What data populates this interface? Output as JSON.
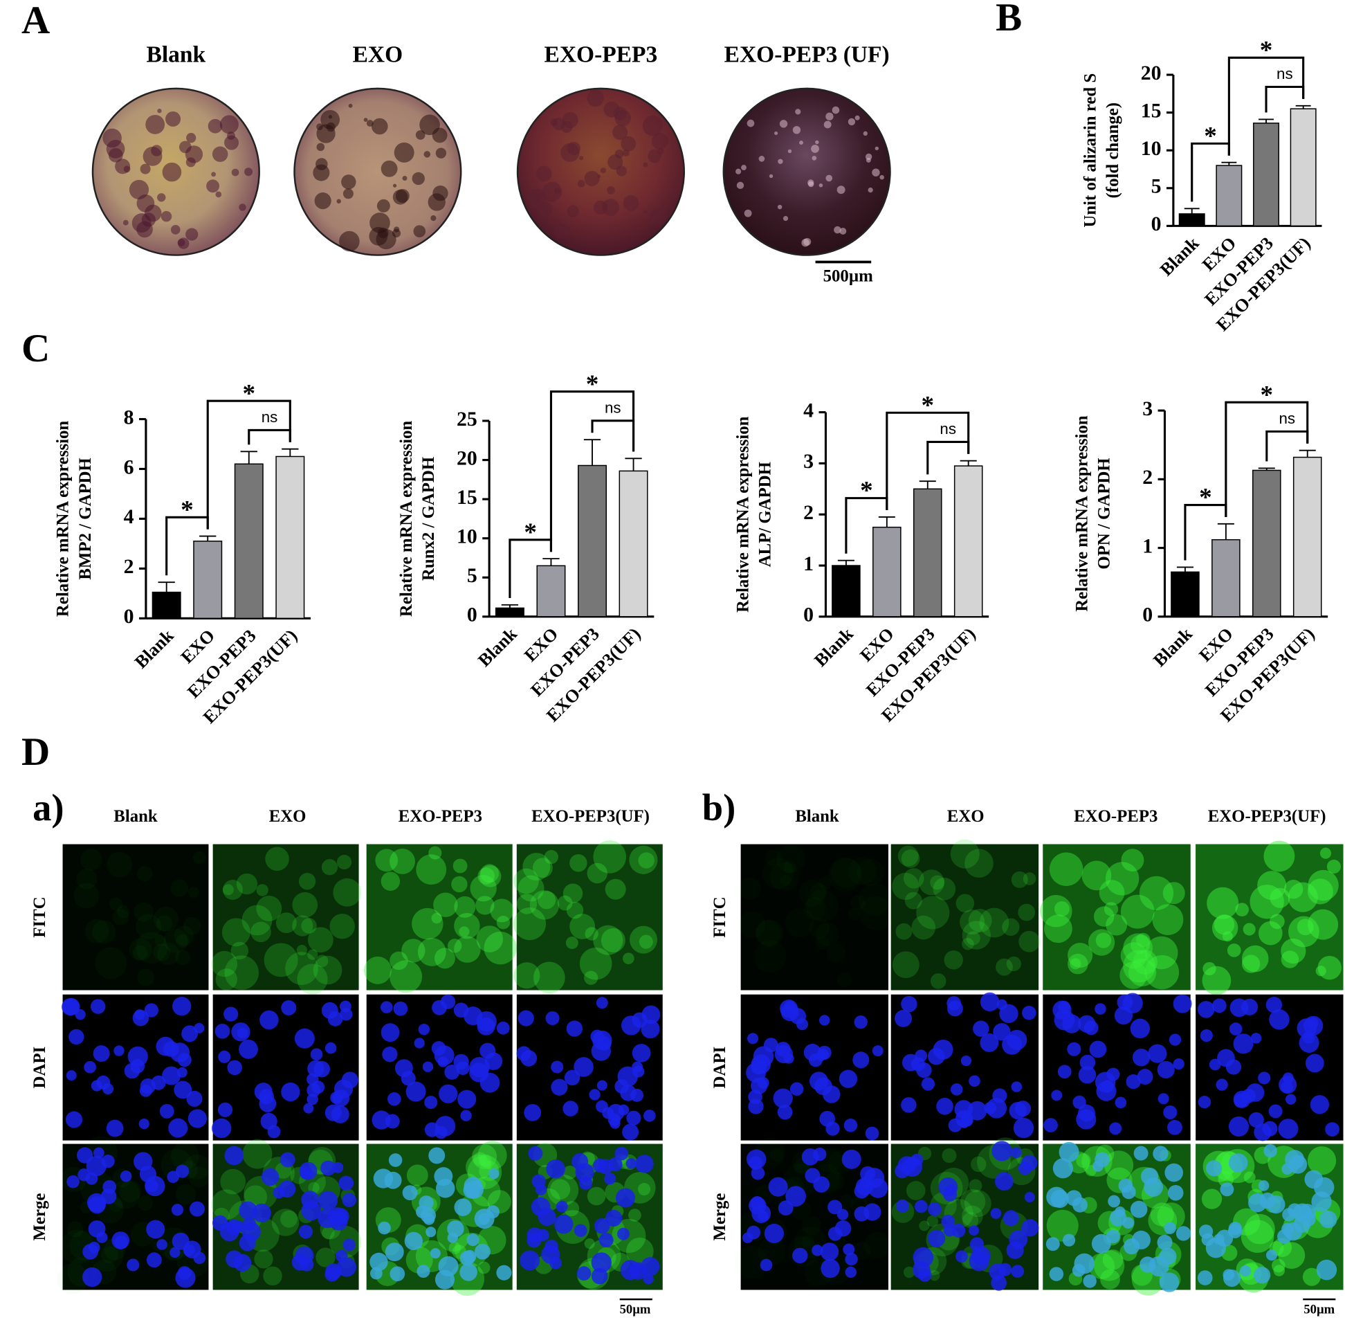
{
  "figure": {
    "panel_labels": [
      "A",
      "B",
      "C",
      "D"
    ],
    "panel_a": {
      "groups": [
        "Blank",
        "EXO",
        "EXO-PEP3",
        "EXO-PEP3 (UF)"
      ],
      "scale_bar": "500µm"
    },
    "panel_d": {
      "sub_labels": [
        "a)",
        "b)"
      ],
      "groups": [
        "Blank",
        "EXO",
        "EXO-PEP3",
        "EXO-PEP3(UF)"
      ],
      "channels": [
        "FITC",
        "DAPI",
        "Merge"
      ],
      "scale_bar": "50µm"
    }
  },
  "chart_data": [
    {
      "type": "bar",
      "ylabel": [
        "Unit of alizarin red S",
        "(fold change)"
      ],
      "categories": [
        "Blank",
        "EXO",
        "EXO-PEP3",
        "EXO-PEP3(UF)"
      ],
      "values": [
        1.6,
        8.0,
        13.6,
        15.5
      ],
      "errors": [
        0.7,
        0.4,
        0.5,
        0.4
      ],
      "colors": [
        "#000000",
        "#9a9aa2",
        "#777777",
        "#d4d4d4"
      ],
      "ylim": [
        0,
        20
      ],
      "yticks": [
        0,
        5,
        10,
        15,
        20
      ],
      "annotations": [
        {
          "text": "*",
          "between": [
            0,
            1
          ]
        },
        {
          "text": "ns",
          "between": [
            2,
            3
          ]
        },
        {
          "text": "*",
          "between": [
            1,
            3
          ]
        }
      ]
    },
    {
      "type": "bar",
      "ylabel": [
        "Relative mRNA expression",
        "BMP2 / GAPDH"
      ],
      "categories": [
        "Blank",
        "EXO",
        "EXO-PEP3",
        "EXO-PEP3(UF)"
      ],
      "values": [
        1.05,
        3.1,
        6.2,
        6.5
      ],
      "errors": [
        0.4,
        0.2,
        0.5,
        0.3
      ],
      "colors": [
        "#000000",
        "#9a9aa2",
        "#777777",
        "#d4d4d4"
      ],
      "ylim": [
        0,
        8
      ],
      "yticks": [
        0,
        2,
        4,
        6,
        8
      ],
      "annotations": [
        {
          "text": "*",
          "between": [
            0,
            1
          ]
        },
        {
          "text": "ns",
          "between": [
            2,
            3
          ]
        },
        {
          "text": "*",
          "between": [
            1,
            3
          ]
        }
      ]
    },
    {
      "type": "bar",
      "ylabel": [
        "Relative mRNA expression",
        "Runx2 / GAPDH"
      ],
      "categories": [
        "Blank",
        "EXO",
        "EXO-PEP3",
        "EXO-PEP3(UF)"
      ],
      "values": [
        1.1,
        6.5,
        19.3,
        18.6
      ],
      "errors": [
        0.4,
        0.9,
        3.3,
        1.6
      ],
      "colors": [
        "#000000",
        "#9a9aa2",
        "#777777",
        "#d4d4d4"
      ],
      "ylim": [
        0,
        25
      ],
      "yticks": [
        0,
        5,
        10,
        15,
        20,
        25
      ],
      "annotations": [
        {
          "text": "*",
          "between": [
            0,
            1
          ]
        },
        {
          "text": "ns",
          "between": [
            2,
            3
          ]
        },
        {
          "text": "*",
          "between": [
            1,
            3
          ]
        }
      ]
    },
    {
      "type": "bar",
      "ylabel": [
        "Relative mRNA expression",
        "ALP/ GAPDH"
      ],
      "categories": [
        "Blank",
        "EXO",
        "EXO-PEP3",
        "EXO-PEP3(UF)"
      ],
      "values": [
        1.0,
        1.75,
        2.5,
        2.95
      ],
      "errors": [
        0.1,
        0.2,
        0.15,
        0.1
      ],
      "colors": [
        "#000000",
        "#9a9aa2",
        "#777777",
        "#d4d4d4"
      ],
      "ylim": [
        0,
        4
      ],
      "yticks": [
        0,
        1,
        2,
        3,
        4
      ],
      "annotations": [
        {
          "text": "*",
          "between": [
            0,
            1
          ]
        },
        {
          "text": "ns",
          "between": [
            2,
            3
          ]
        },
        {
          "text": "*",
          "between": [
            1,
            3
          ]
        }
      ]
    },
    {
      "type": "bar",
      "ylabel": [
        "Relative mRNA expression",
        "OPN / GAPDH"
      ],
      "categories": [
        "Blank",
        "EXO",
        "EXO-PEP3",
        "EXO-PEP3(UF)"
      ],
      "values": [
        0.65,
        1.12,
        2.13,
        2.32
      ],
      "errors": [
        0.07,
        0.23,
        0.03,
        0.1
      ],
      "colors": [
        "#000000",
        "#9a9aa2",
        "#777777",
        "#d4d4d4"
      ],
      "ylim": [
        0,
        3
      ],
      "yticks": [
        0,
        1,
        2,
        3
      ],
      "annotations": [
        {
          "text": "*",
          "between": [
            0,
            1
          ]
        },
        {
          "text": "ns",
          "between": [
            2,
            3
          ]
        },
        {
          "text": "*",
          "between": [
            1,
            3
          ]
        }
      ]
    }
  ]
}
